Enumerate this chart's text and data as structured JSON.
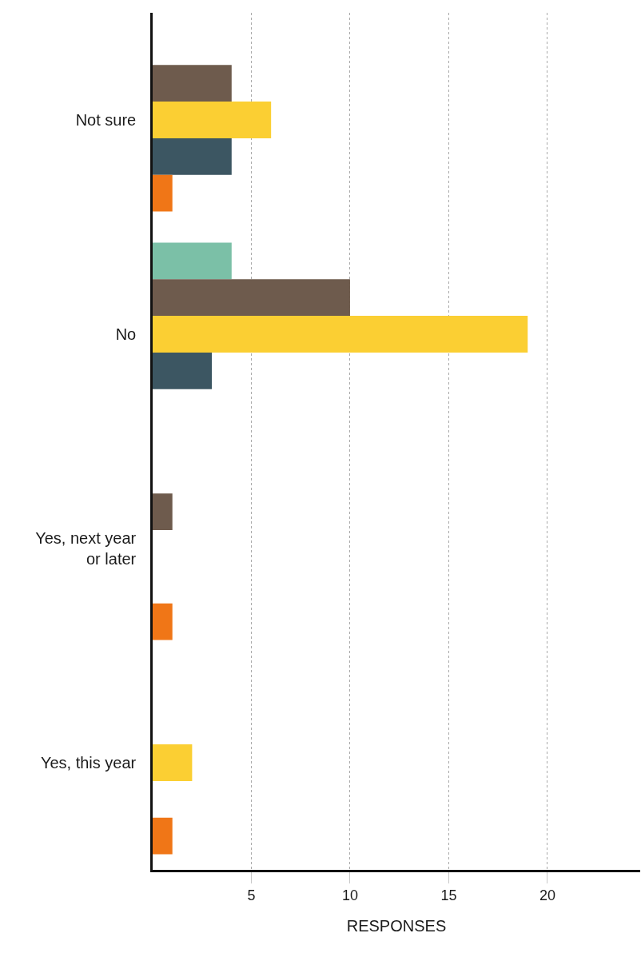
{
  "chart_data": {
    "type": "bar",
    "orientation": "horizontal",
    "categories": [
      "Not sure",
      "No",
      "Yes, next year or later",
      "Yes, this year"
    ],
    "series": [
      {
        "color": "#7bc0a7",
        "values": [
          null,
          4,
          null,
          null
        ]
      },
      {
        "color": "#6e5b4d",
        "values": [
          4,
          10,
          1,
          null
        ]
      },
      {
        "color": "#fbcf33",
        "values": [
          6,
          19,
          null,
          2
        ]
      },
      {
        "color": "#3c5662",
        "values": [
          4,
          3,
          null,
          null
        ]
      },
      {
        "color": "#f07617",
        "values": [
          1,
          null,
          1,
          1
        ]
      }
    ],
    "xlabel": "RESPONSES",
    "xlim": [
      0,
      24.7
    ],
    "xticks": [
      5,
      10,
      15,
      20
    ],
    "grid": "x",
    "legend": false
  }
}
